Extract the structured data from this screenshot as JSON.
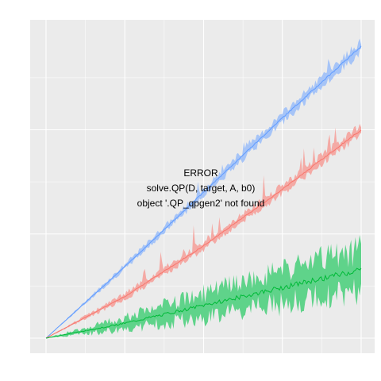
{
  "chart_data": {
    "type": "area",
    "title": "",
    "xlabel": "",
    "ylabel": "",
    "grid": true,
    "legend": "none",
    "xlim": [
      0,
      1
    ],
    "ylim": [
      -0.02,
      1.05
    ],
    "annotation": [
      "ERROR",
      "solve.QP(D, target, A, b0)",
      "object '.QP_qpgen2' not found"
    ],
    "series": [
      {
        "color": "#619cff",
        "band_color": "#a6c4f7",
        "x": [
          0,
          0.25,
          0.5,
          0.75,
          1.0
        ],
        "values": [
          0,
          0.24,
          0.49,
          0.74,
          0.98
        ],
        "band_halfwidth": [
          0,
          0.008,
          0.012,
          0.015,
          0.018
        ]
      },
      {
        "color": "#f8766d",
        "band_color": "#f4aaa5",
        "x": [
          0,
          0.25,
          0.5,
          0.75,
          1.0
        ],
        "values": [
          0,
          0.14,
          0.31,
          0.5,
          0.7
        ],
        "band_halfwidth": [
          0,
          0.01,
          0.012,
          0.014,
          0.016
        ]
      },
      {
        "color": "#00ba38",
        "band_color": "#5fd38a",
        "x": [
          0,
          0.25,
          0.5,
          0.75,
          1.0
        ],
        "values": [
          0,
          0.05,
          0.11,
          0.17,
          0.23
        ],
        "band_halfwidth": [
          0,
          0.02,
          0.04,
          0.055,
          0.07
        ]
      }
    ]
  }
}
